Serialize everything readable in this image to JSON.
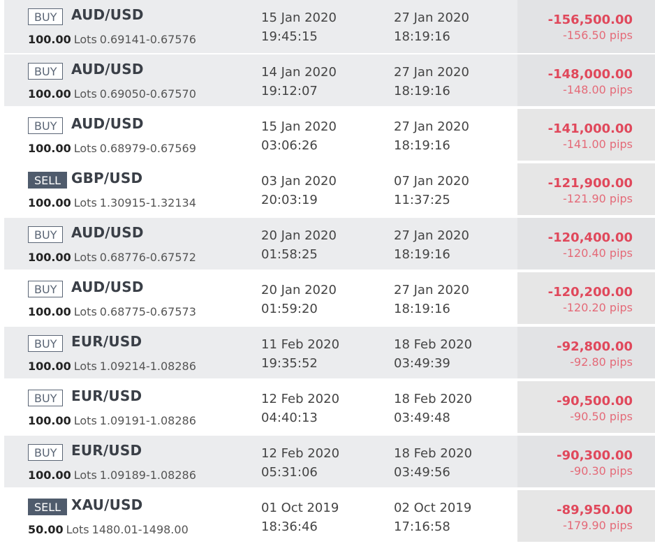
{
  "trades": [
    {
      "side": "BUY",
      "symbol": "AUD/USD",
      "lots": "100.00",
      "lots_unit": "Lots",
      "price_range": "0.69141-0.67576",
      "open_date": "15 Jan 2020",
      "open_time": "19:45:15",
      "close_date": "27 Jan 2020",
      "close_time": "18:19:16",
      "profit": "-156,500.00",
      "pips": "-156.50 pips"
    },
    {
      "side": "BUY",
      "symbol": "AUD/USD",
      "lots": "100.00",
      "lots_unit": "Lots",
      "price_range": "0.69050-0.67570",
      "open_date": "14 Jan 2020",
      "open_time": "19:12:07",
      "close_date": "27 Jan 2020",
      "close_time": "18:19:16",
      "profit": "-148,000.00",
      "pips": "-148.00 pips"
    },
    {
      "side": "BUY",
      "symbol": "AUD/USD",
      "lots": "100.00",
      "lots_unit": "Lots",
      "price_range": "0.68979-0.67569",
      "open_date": "15 Jan 2020",
      "open_time": "03:06:26",
      "close_date": "27 Jan 2020",
      "close_time": "18:19:16",
      "profit": "-141,000.00",
      "pips": "-141.00 pips"
    },
    {
      "side": "SELL",
      "symbol": "GBP/USD",
      "lots": "100.00",
      "lots_unit": "Lots",
      "price_range": "1.30915-1.32134",
      "open_date": "03 Jan 2020",
      "open_time": "20:03:19",
      "close_date": "07 Jan 2020",
      "close_time": "11:37:25",
      "profit": "-121,900.00",
      "pips": "-121.90 pips"
    },
    {
      "side": "BUY",
      "symbol": "AUD/USD",
      "lots": "100.00",
      "lots_unit": "Lots",
      "price_range": "0.68776-0.67572",
      "open_date": "20 Jan 2020",
      "open_time": "01:58:25",
      "close_date": "27 Jan 2020",
      "close_time": "18:19:16",
      "profit": "-120,400.00",
      "pips": "-120.40 pips"
    },
    {
      "side": "BUY",
      "symbol": "AUD/USD",
      "lots": "100.00",
      "lots_unit": "Lots",
      "price_range": "0.68775-0.67573",
      "open_date": "20 Jan 2020",
      "open_time": "01:59:20",
      "close_date": "27 Jan 2020",
      "close_time": "18:19:16",
      "profit": "-120,200.00",
      "pips": "-120.20 pips"
    },
    {
      "side": "BUY",
      "symbol": "EUR/USD",
      "lots": "100.00",
      "lots_unit": "Lots",
      "price_range": "1.09214-1.08286",
      "open_date": "11 Feb 2020",
      "open_time": "19:35:52",
      "close_date": "18 Feb 2020",
      "close_time": "03:49:39",
      "profit": "-92,800.00",
      "pips": "-92.80 pips"
    },
    {
      "side": "BUY",
      "symbol": "EUR/USD",
      "lots": "100.00",
      "lots_unit": "Lots",
      "price_range": "1.09191-1.08286",
      "open_date": "12 Feb 2020",
      "open_time": "04:40:13",
      "close_date": "18 Feb 2020",
      "close_time": "03:49:48",
      "profit": "-90,500.00",
      "pips": "-90.50 pips"
    },
    {
      "side": "BUY",
      "symbol": "EUR/USD",
      "lots": "100.00",
      "lots_unit": "Lots",
      "price_range": "1.09189-1.08286",
      "open_date": "12 Feb 2020",
      "open_time": "05:31:06",
      "close_date": "18 Feb 2020",
      "close_time": "03:49:56",
      "profit": "-90,300.00",
      "pips": "-90.30 pips"
    },
    {
      "side": "SELL",
      "symbol": "XAU/USD",
      "lots": "50.00",
      "lots_unit": "Lots",
      "price_range": "1480.01-1498.00",
      "open_date": "01 Oct 2019",
      "open_time": "18:36:46",
      "close_date": "02 Oct 2019",
      "close_time": "17:16:58",
      "profit": "-89,950.00",
      "pips": "-179.90 pips"
    }
  ],
  "colors": {
    "loss": "#e0485b",
    "sell_badge": "#4f5b6c",
    "row_alt": "#ebecee",
    "pnl_bg": "#e6e6e6"
  }
}
